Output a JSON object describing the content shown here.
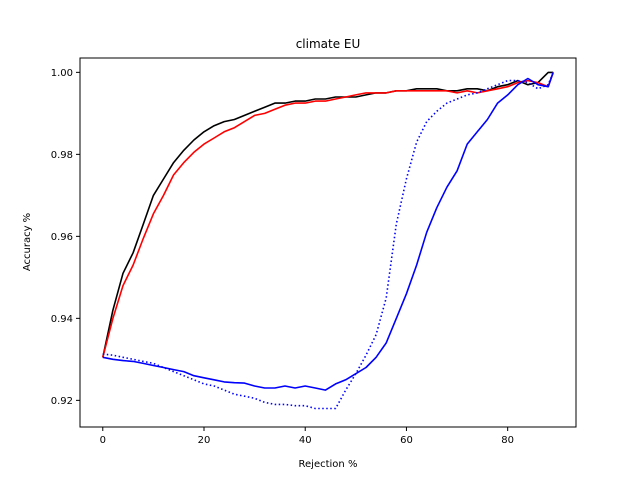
{
  "chart_data": {
    "type": "line",
    "title": "climate EU",
    "xlabel": "Rejection %",
    "ylabel": "Accuracy %",
    "xlim": [
      -4.5,
      93.5
    ],
    "ylim": [
      0.9135,
      1.0035
    ],
    "xticks": [
      0,
      20,
      40,
      60,
      80
    ],
    "xtick_labels": [
      "0",
      "20",
      "40",
      "60",
      "80"
    ],
    "yticks": [
      0.92,
      0.94,
      0.96,
      0.98,
      1.0
    ],
    "ytick_labels": [
      "0.92",
      "0.94",
      "0.96",
      "0.98",
      "1.00"
    ],
    "grid": false,
    "legend": "none",
    "series": [
      {
        "color": "#000000",
        "style": "solid",
        "x": [
          0,
          2,
          4,
          6,
          8,
          10,
          12,
          14,
          16,
          18,
          20,
          22,
          24,
          26,
          28,
          30,
          32,
          34,
          36,
          38,
          40,
          42,
          44,
          46,
          48,
          50,
          52,
          54,
          56,
          58,
          60,
          62,
          64,
          66,
          68,
          70,
          72,
          74,
          76,
          78,
          80,
          82,
          84,
          86,
          88,
          89
        ],
        "y": [
          0.9305,
          0.942,
          0.951,
          0.956,
          0.963,
          0.97,
          0.974,
          0.978,
          0.981,
          0.9835,
          0.9855,
          0.987,
          0.988,
          0.9885,
          0.9895,
          0.9905,
          0.9915,
          0.9925,
          0.9925,
          0.993,
          0.993,
          0.9935,
          0.9935,
          0.994,
          0.994,
          0.994,
          0.9945,
          0.995,
          0.995,
          0.9955,
          0.9955,
          0.996,
          0.996,
          0.996,
          0.9955,
          0.9955,
          0.996,
          0.996,
          0.9955,
          0.9965,
          0.997,
          0.998,
          0.997,
          0.9975,
          1.0,
          1.0
        ]
      },
      {
        "color": "#ff0000",
        "style": "solid",
        "x": [
          0,
          2,
          4,
          6,
          8,
          10,
          12,
          14,
          16,
          18,
          20,
          22,
          24,
          26,
          28,
          30,
          32,
          34,
          36,
          38,
          40,
          42,
          44,
          46,
          48,
          50,
          52,
          54,
          56,
          58,
          60,
          62,
          64,
          66,
          68,
          70,
          72,
          74,
          76,
          78,
          80,
          82,
          84,
          86,
          88,
          89
        ],
        "y": [
          0.9305,
          0.94,
          0.948,
          0.953,
          0.9595,
          0.9655,
          0.97,
          0.975,
          0.978,
          0.9805,
          0.9825,
          0.984,
          0.9855,
          0.9865,
          0.988,
          0.9895,
          0.99,
          0.991,
          0.992,
          0.9925,
          0.9925,
          0.993,
          0.993,
          0.9935,
          0.994,
          0.9945,
          0.995,
          0.995,
          0.995,
          0.9955,
          0.9955,
          0.9955,
          0.9955,
          0.9955,
          0.9955,
          0.995,
          0.9955,
          0.995,
          0.9955,
          0.996,
          0.9965,
          0.9975,
          0.998,
          0.9975,
          0.9965,
          1.0
        ]
      },
      {
        "color": "#0000ff",
        "style": "solid",
        "x": [
          0,
          2,
          4,
          6,
          8,
          10,
          12,
          14,
          16,
          18,
          20,
          22,
          24,
          26,
          28,
          30,
          32,
          34,
          36,
          38,
          40,
          42,
          44,
          46,
          48,
          50,
          52,
          54,
          56,
          58,
          60,
          62,
          64,
          66,
          68,
          70,
          72,
          74,
          76,
          78,
          80,
          82,
          84,
          86,
          88,
          89
        ],
        "y": [
          0.9305,
          0.93,
          0.9297,
          0.9295,
          0.929,
          0.9285,
          0.928,
          0.9275,
          0.927,
          0.926,
          0.9255,
          0.925,
          0.9245,
          0.9243,
          0.9242,
          0.9235,
          0.923,
          0.923,
          0.9235,
          0.923,
          0.9235,
          0.923,
          0.9225,
          0.924,
          0.925,
          0.9265,
          0.928,
          0.9305,
          0.934,
          0.94,
          0.946,
          0.953,
          0.961,
          0.967,
          0.972,
          0.976,
          0.9825,
          0.9855,
          0.9885,
          0.9925,
          0.9945,
          0.997,
          0.9985,
          0.997,
          0.9965,
          1.0
        ]
      },
      {
        "color": "#0000ff",
        "style": "dotted",
        "x": [
          0,
          2,
          4,
          6,
          8,
          10,
          12,
          14,
          16,
          18,
          20,
          22,
          24,
          26,
          28,
          30,
          32,
          34,
          36,
          38,
          40,
          42,
          44,
          46,
          48,
          50,
          52,
          54,
          56,
          58,
          60,
          62,
          64,
          66,
          68,
          70,
          72,
          74,
          76,
          78,
          80,
          82,
          84,
          86,
          88,
          89
        ],
        "y": [
          0.9313,
          0.931,
          0.9305,
          0.93,
          0.9295,
          0.929,
          0.928,
          0.927,
          0.926,
          0.925,
          0.924,
          0.9235,
          0.9225,
          0.9215,
          0.921,
          0.9205,
          0.9195,
          0.919,
          0.919,
          0.9187,
          0.9187,
          0.918,
          0.918,
          0.918,
          0.9225,
          0.9265,
          0.931,
          0.936,
          0.945,
          0.963,
          0.974,
          0.983,
          0.988,
          0.9905,
          0.9925,
          0.9935,
          0.9945,
          0.995,
          0.996,
          0.997,
          0.998,
          0.998,
          0.9975,
          0.996,
          0.997,
          1.0
        ]
      }
    ]
  }
}
